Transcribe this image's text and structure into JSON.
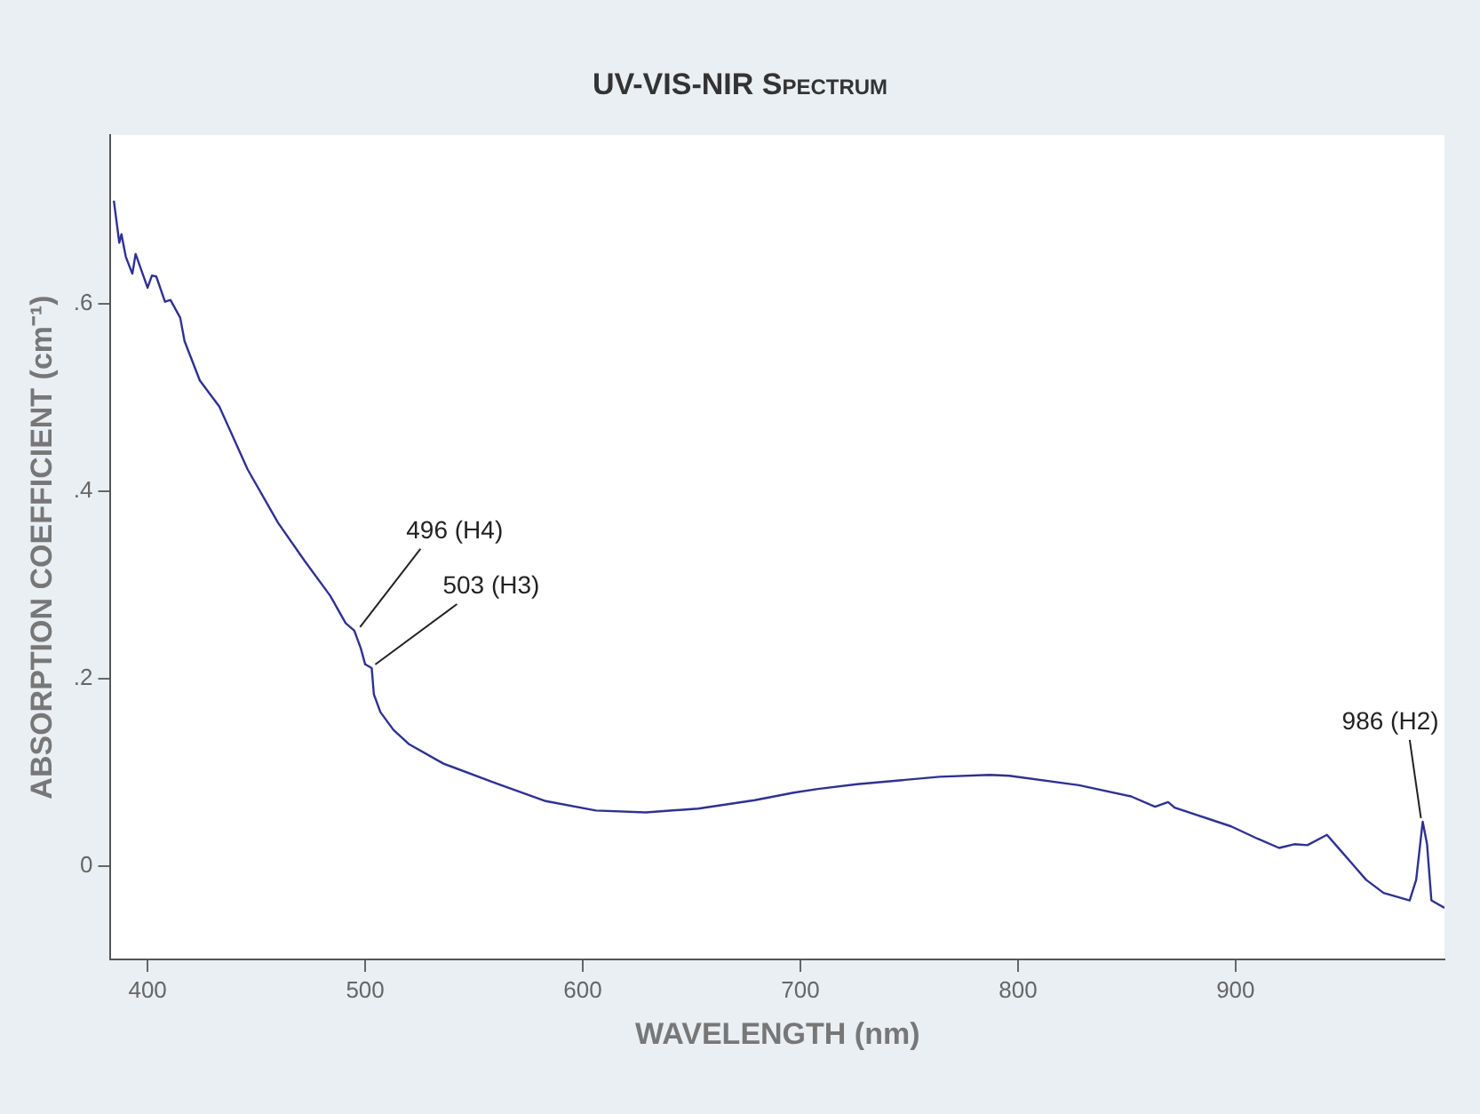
{
  "chart_data": {
    "type": "line",
    "title": "UV-VIS-NIR Spectrum",
    "xlabel": "WAVELENGTH (nm)",
    "ylabel": "ABSORPTION COEFFICIENT (cm⁻¹)",
    "x": [
      384.5,
      387,
      388,
      390,
      393,
      394.5,
      400,
      402,
      404,
      408,
      410.5,
      415,
      417,
      424,
      433,
      446,
      460,
      472,
      484,
      491,
      495,
      498,
      500,
      503,
      504,
      507,
      513,
      520,
      536,
      560,
      583,
      606,
      629,
      653,
      679,
      697,
      708,
      726,
      764,
      787,
      796,
      828,
      852,
      863,
      869,
      872,
      898,
      910,
      920,
      927,
      933,
      942,
      948,
      960,
      968,
      980,
      983,
      986,
      988,
      990,
      996
    ],
    "series": [
      {
        "color": "#2e3192",
        "values": [
          0.71,
          0.665,
          0.674,
          0.65,
          0.632,
          0.653,
          0.617,
          0.63,
          0.629,
          0.602,
          0.604,
          0.585,
          0.56,
          0.518,
          0.49,
          0.423,
          0.366,
          0.326,
          0.288,
          0.259,
          0.251,
          0.232,
          0.215,
          0.211,
          0.183,
          0.164,
          0.145,
          0.13,
          0.109,
          0.088,
          0.069,
          0.059,
          0.057,
          0.061,
          0.07,
          0.078,
          0.082,
          0.087,
          0.095,
          0.097,
          0.096,
          0.086,
          0.074,
          0.063,
          0.068,
          0.062,
          0.042,
          0.029,
          0.019,
          0.023,
          0.022,
          0.033,
          0.017,
          -0.015,
          -0.029,
          -0.037,
          -0.015,
          0.047,
          0.023,
          -0.037,
          -0.045
        ]
      }
    ],
    "xlim": [
      383,
      996
    ],
    "xticks": [
      400,
      500,
      600,
      700,
      800,
      900
    ],
    "ylim": [
      -0.1,
      0.78
    ],
    "yticks": [
      {
        "value": 0,
        "label": "0"
      },
      {
        "value": 0.2,
        "label": ".2"
      },
      {
        "value": 0.4,
        "label": ".4"
      },
      {
        "value": 0.6,
        "label": ".6"
      }
    ],
    "grid": false,
    "legend": false,
    "marker": "none",
    "line_style": "solid",
    "annotations": [
      {
        "text": "496 (H4)",
        "x": 496,
        "y": 0.251
      },
      {
        "text": "503 (H3)",
        "x": 503,
        "y": 0.211
      },
      {
        "text": "986 (H2)",
        "x": 986,
        "y": 0.047
      }
    ]
  }
}
